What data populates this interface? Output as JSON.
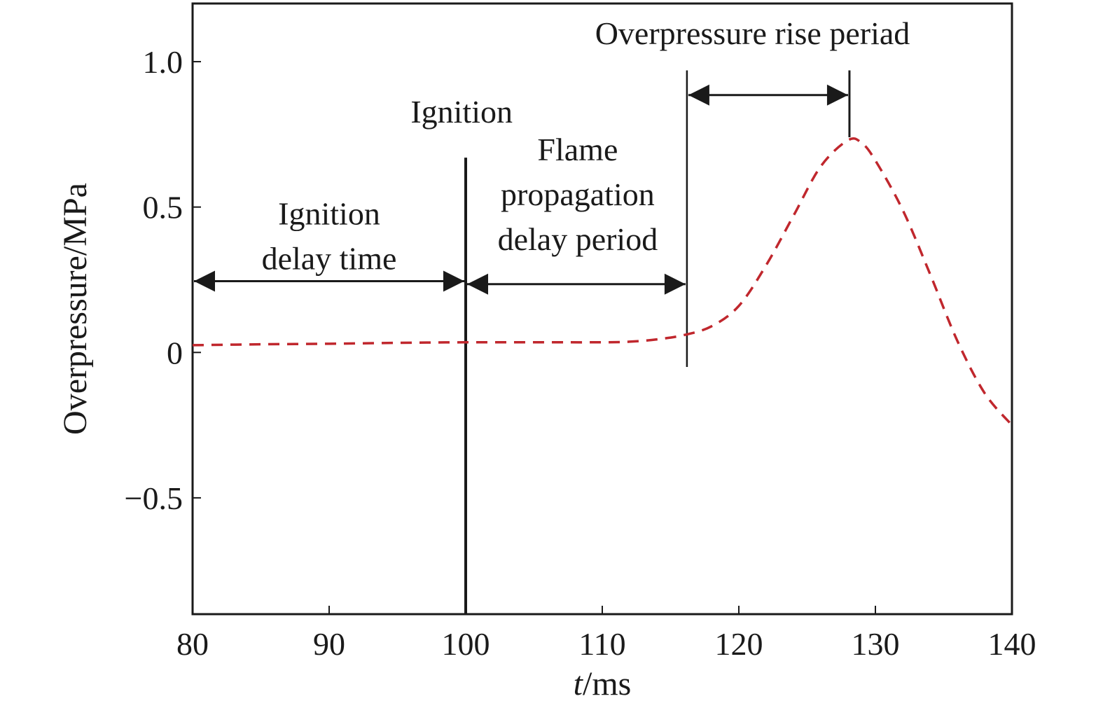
{
  "chart_data": {
    "type": "line",
    "title": "",
    "xlabel_italic": "t",
    "xlabel_rest": "/ms",
    "ylabel": "Overpressure/MPa",
    "xlim": [
      80,
      140
    ],
    "ylim": [
      -0.9,
      1.2
    ],
    "grid": false,
    "x_ticks": [
      80,
      90,
      100,
      110,
      120,
      130,
      140
    ],
    "x_tick_labels": [
      "80",
      "90",
      "100",
      "110",
      "120",
      "130",
      "140"
    ],
    "y_ticks": [
      -0.5,
      0,
      0.5,
      1.0
    ],
    "y_tick_labels": [
      "−0.5",
      "0",
      "0.5",
      "1.0"
    ],
    "series": [
      {
        "color": "#c0272d",
        "line_style": "dashed",
        "x": [
          80,
          85,
          90,
          95,
          100,
          105,
          110,
          112,
          114,
          116,
          118,
          120,
          122,
          124,
          126,
          128,
          129,
          130,
          132,
          134,
          136,
          138,
          140
        ],
        "y": [
          0.025,
          0.028,
          0.03,
          0.033,
          0.035,
          0.035,
          0.035,
          0.037,
          0.045,
          0.06,
          0.09,
          0.16,
          0.3,
          0.47,
          0.64,
          0.73,
          0.72,
          0.66,
          0.49,
          0.27,
          0.04,
          -0.14,
          -0.25
        ]
      }
    ],
    "markers": {
      "ignition_line": {
        "x": 100,
        "y_top": 0.67,
        "y_bottom": -0.9
      },
      "rise_start_line": {
        "x": 116.2,
        "y_top": 0.97,
        "y_bottom": -0.05
      },
      "peak_line": {
        "x": 128.1,
        "y_top": 0.97,
        "y_bottom": 0.74
      }
    },
    "arrows": [
      {
        "x1": 80,
        "x2": 100,
        "y": 0.245
      },
      {
        "x1": 100,
        "x2": 116.2,
        "y": 0.235
      },
      {
        "x1": 116.2,
        "x2": 128.1,
        "y": 0.885
      }
    ],
    "annotations": [
      {
        "lines": [
          "Ignition",
          "delay time"
        ],
        "x": 90,
        "y": 0.44
      },
      {
        "lines": [
          "Ignition"
        ],
        "x": 99.7,
        "y": 0.79
      },
      {
        "lines": [
          "Flame",
          "propagation",
          "delay period"
        ],
        "x": 108.2,
        "y": 0.66
      },
      {
        "lines": [
          "Overpressure rise periad"
        ],
        "x": 121,
        "y": 1.06
      }
    ]
  }
}
